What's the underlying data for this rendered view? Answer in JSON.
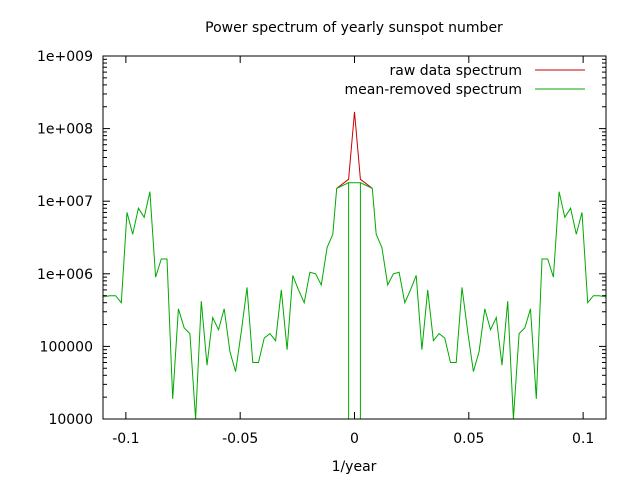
{
  "chart_data": {
    "type": "line",
    "title": "Power spectrum of yearly sunspot number",
    "xlabel": "1/year",
    "ylabel": "",
    "xlim": [
      -0.11,
      0.11
    ],
    "ylim": [
      10000,
      1000000000
    ],
    "yscale": "log",
    "grid": false,
    "legend_position": "top-right",
    "x_ticks": [
      -0.1,
      -0.05,
      0,
      0.05,
      0.1
    ],
    "x_tick_labels": [
      "-0.1",
      "-0.05",
      "0",
      "0.05",
      "0.1"
    ],
    "y_ticks": [
      10000,
      100000,
      1000000,
      10000000,
      100000000,
      1000000000
    ],
    "y_tick_labels": [
      "10000",
      "100000",
      "1e+006",
      "1e+007",
      "1e+008",
      "1e+009"
    ],
    "series": [
      {
        "name": "raw data spectrum",
        "color": "#cc0000",
        "points": [
          [
            -0.0078,
            15000000
          ],
          [
            -0.0026,
            20000000
          ],
          [
            0.0,
            170000000
          ],
          [
            0.0026,
            20000000
          ],
          [
            0.0078,
            15000000
          ]
        ]
      },
      {
        "name": "mean-removed spectrum",
        "color": "#00aa00",
        "points": [
          [
            -0.11,
            480000
          ],
          [
            -0.107,
            500000
          ],
          [
            -0.1045,
            500000
          ],
          [
            -0.102,
            400000
          ],
          [
            -0.0995,
            7000000
          ],
          [
            -0.097,
            3500000
          ],
          [
            -0.0945,
            8000000
          ],
          [
            -0.092,
            6000000
          ],
          [
            -0.0895,
            13500000
          ],
          [
            -0.087,
            900000
          ],
          [
            -0.0845,
            1600000
          ],
          [
            -0.082,
            1600000
          ],
          [
            -0.0795,
            19000
          ],
          [
            -0.077,
            330000
          ],
          [
            -0.0745,
            180000
          ],
          [
            -0.072,
            150000
          ],
          [
            -0.0695,
            10000
          ],
          [
            -0.067,
            420000
          ],
          [
            -0.0645,
            55000
          ],
          [
            -0.062,
            250000
          ],
          [
            -0.0595,
            170000
          ],
          [
            -0.057,
            330000
          ],
          [
            -0.0545,
            85000
          ],
          [
            -0.052,
            45000
          ],
          [
            -0.0495,
            160000
          ],
          [
            -0.047,
            650000
          ],
          [
            -0.0445,
            60000
          ],
          [
            -0.042,
            60000
          ],
          [
            -0.0395,
            130000
          ],
          [
            -0.037,
            150000
          ],
          [
            -0.0345,
            120000
          ],
          [
            -0.032,
            600000
          ],
          [
            -0.0295,
            90000
          ],
          [
            -0.027,
            950000
          ],
          [
            -0.0245,
            600000
          ],
          [
            -0.022,
            400000
          ],
          [
            -0.0195,
            1050000
          ],
          [
            -0.017,
            1000000
          ],
          [
            -0.0145,
            700000
          ],
          [
            -0.012,
            2300000
          ],
          [
            -0.0095,
            3500000
          ],
          [
            -0.0078,
            15000000
          ],
          [
            -0.0026,
            18000000
          ],
          [
            -0.0026,
            400000
          ],
          [
            -0.0026,
            10000
          ],
          [
            -0.0026,
            400000
          ],
          [
            -0.0026,
            18000000
          ],
          [
            0.0,
            18000000
          ],
          [
            0.0026,
            18000000
          ],
          [
            0.0026,
            400000
          ],
          [
            0.0026,
            10000
          ],
          [
            0.0026,
            400000
          ],
          [
            0.0026,
            18000000
          ],
          [
            0.0078,
            15000000
          ],
          [
            0.0095,
            3500000
          ],
          [
            0.012,
            2300000
          ],
          [
            0.0145,
            700000
          ],
          [
            0.017,
            1000000
          ],
          [
            0.0195,
            1050000
          ],
          [
            0.022,
            400000
          ],
          [
            0.0245,
            600000
          ],
          [
            0.027,
            950000
          ],
          [
            0.0295,
            90000
          ],
          [
            0.032,
            600000
          ],
          [
            0.0345,
            120000
          ],
          [
            0.037,
            150000
          ],
          [
            0.0395,
            130000
          ],
          [
            0.042,
            60000
          ],
          [
            0.0445,
            60000
          ],
          [
            0.047,
            650000
          ],
          [
            0.0495,
            160000
          ],
          [
            0.052,
            45000
          ],
          [
            0.0545,
            85000
          ],
          [
            0.057,
            330000
          ],
          [
            0.0595,
            170000
          ],
          [
            0.062,
            250000
          ],
          [
            0.0645,
            55000
          ],
          [
            0.067,
            420000
          ],
          [
            0.0695,
            10000
          ],
          [
            0.072,
            150000
          ],
          [
            0.0745,
            180000
          ],
          [
            0.077,
            330000
          ],
          [
            0.0795,
            19000
          ],
          [
            0.082,
            1600000
          ],
          [
            0.0845,
            1600000
          ],
          [
            0.087,
            900000
          ],
          [
            0.0895,
            13500000
          ],
          [
            0.092,
            6000000
          ],
          [
            0.0945,
            8000000
          ],
          [
            0.097,
            3500000
          ],
          [
            0.0995,
            7000000
          ],
          [
            0.102,
            400000
          ],
          [
            0.1045,
            500000
          ],
          [
            0.107,
            500000
          ],
          [
            0.11,
            480000
          ]
        ]
      }
    ]
  }
}
